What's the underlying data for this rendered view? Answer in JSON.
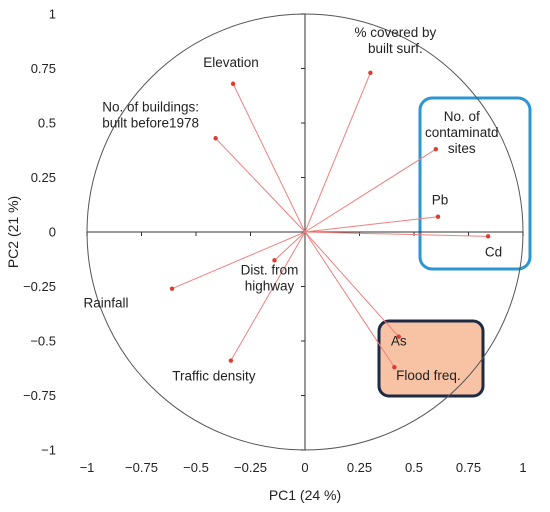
{
  "chart_data": {
    "type": "scatter",
    "subtype": "pca-correlation-circle",
    "xlabel": "PC1 (24 %)",
    "ylabel": "PC2 (21 %)",
    "xlim": [
      -1,
      1
    ],
    "ylim": [
      -1,
      1
    ],
    "x_ticks": [
      "−1",
      "−0.75",
      "−0.5",
      "−0.25",
      "0",
      "0.25",
      "0.5",
      "0.75",
      "1"
    ],
    "y_ticks": [
      "−1",
      "−0.75",
      "−0.5",
      "−0.25",
      "0",
      "0.25",
      "0.5",
      "0.75",
      "1"
    ],
    "grid": false,
    "unit_circle": true,
    "colors": {
      "vector": "#f08080",
      "point": "#e23b2e",
      "blue_box": "#2b96d1",
      "orange_box": "#f8c2a4",
      "orange_border": "#1c2a44"
    },
    "points": [
      {
        "label": [
          "Elevation"
        ],
        "x": -0.33,
        "y": 0.68
      },
      {
        "label": [
          "% covered by",
          "built surf."
        ],
        "x": 0.3,
        "y": 0.73
      },
      {
        "label": [
          "No. of buildings:",
          "built before1978"
        ],
        "x": -0.41,
        "y": 0.43
      },
      {
        "label": [
          "No. of",
          "contaminatd",
          "sites"
        ],
        "x": 0.6,
        "y": 0.38
      },
      {
        "label": [
          "Pb"
        ],
        "x": 0.61,
        "y": 0.07
      },
      {
        "label": [
          "Cd"
        ],
        "x": 0.84,
        "y": -0.02
      },
      {
        "label": [
          "Dist. from",
          "highway"
        ],
        "x": -0.14,
        "y": -0.13
      },
      {
        "label": [
          "Rainfall"
        ],
        "x": -0.61,
        "y": -0.26
      },
      {
        "label": [
          "As"
        ],
        "x": 0.43,
        "y": -0.48
      },
      {
        "label": [
          "Flood freq."
        ],
        "x": 0.41,
        "y": -0.62
      },
      {
        "label": [
          "Traffic density"
        ],
        "x": -0.34,
        "y": -0.59
      }
    ]
  }
}
